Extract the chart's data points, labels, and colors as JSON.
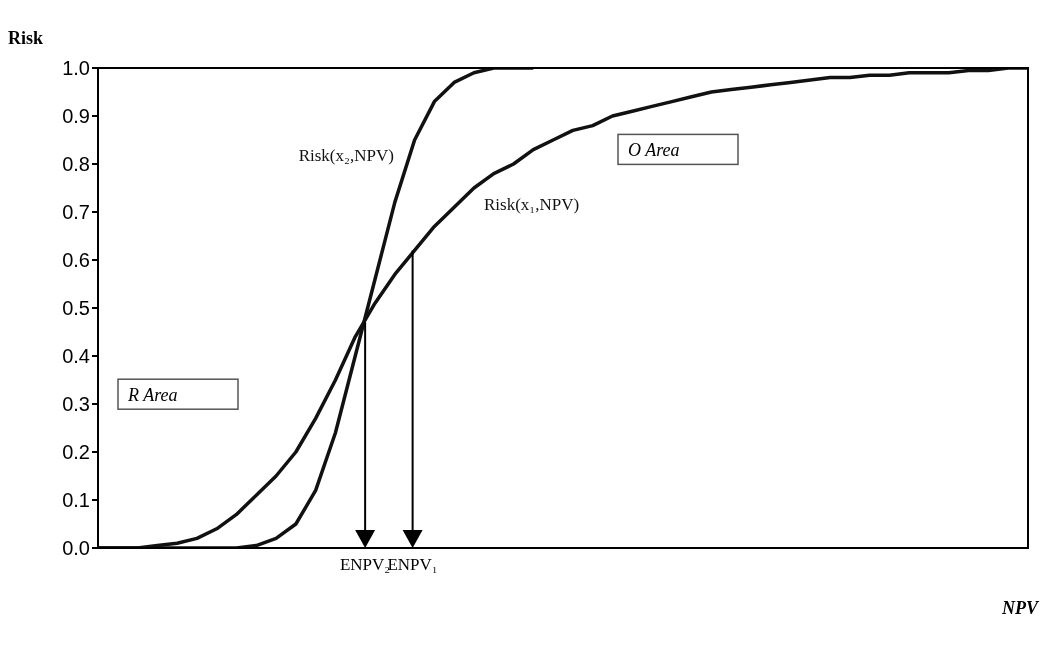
{
  "chart_data": {
    "type": "line",
    "xlabel": "NPV",
    "ylabel": "Risk",
    "categories": [
      null,
      null,
      null,
      null,
      null,
      null,
      null,
      null,
      null,
      null,
      null,
      null,
      null,
      null,
      null,
      null,
      null,
      null,
      null,
      null,
      null,
      null,
      null,
      null,
      null,
      null,
      null,
      null,
      null,
      null,
      null,
      null,
      null,
      null,
      null,
      null,
      null,
      null,
      null,
      null,
      null,
      null,
      null,
      null,
      null,
      null,
      null,
      null
    ],
    "series": [
      {
        "name": "Risk(x₁,NPV)",
        "color": "#111111",
        "values": [
          0,
          0,
          0,
          0.005,
          0.01,
          0.02,
          0.04,
          0.07,
          0.11,
          0.15,
          0.2,
          0.27,
          0.35,
          0.44,
          0.51,
          0.57,
          0.62,
          0.67,
          0.71,
          0.75,
          0.78,
          0.8,
          0.83,
          0.85,
          0.87,
          0.88,
          0.9,
          0.91,
          0.92,
          0.93,
          0.94,
          0.95,
          0.955,
          0.96,
          0.965,
          0.97,
          0.975,
          0.98,
          0.98,
          0.985,
          0.985,
          0.99,
          0.99,
          0.99,
          0.995,
          0.995,
          1,
          1
        ]
      },
      {
        "name": "Risk(x₂,NPV)",
        "color": "#111111",
        "values": [
          0,
          0,
          0,
          0,
          0,
          0,
          0,
          0,
          0.005,
          0.02,
          0.05,
          0.12,
          0.24,
          0.4,
          0.56,
          0.72,
          0.85,
          0.93,
          0.97,
          0.99,
          1,
          1,
          1,
          null,
          null,
          null,
          null,
          null,
          null,
          null,
          null,
          null,
          null,
          null,
          null,
          null,
          null,
          null,
          null,
          null,
          null,
          null,
          null,
          null,
          null,
          null,
          null,
          null
        ]
      }
    ],
    "ylim": [
      0,
      1
    ],
    "yticks": [
      {
        "value": 0,
        "label": "0.0"
      },
      {
        "value": 0.1,
        "label": "0.1"
      },
      {
        "value": 0.2,
        "label": "0.2"
      },
      {
        "value": 0.3,
        "label": "0.3"
      },
      {
        "value": 0.4,
        "label": "0.4"
      },
      {
        "value": 0.5,
        "label": "0.5"
      },
      {
        "value": 0.6,
        "label": "0.6"
      },
      {
        "value": 0.7,
        "label": "0.7"
      },
      {
        "value": 0.8,
        "label": "0.8"
      },
      {
        "value": 0.9,
        "label": "0.9"
      },
      {
        "value": 1,
        "label": "1.0"
      }
    ],
    "annotations": [
      "ENPV₂",
      "ENPV₁",
      "O Area",
      "R Area"
    ],
    "tick_labels": "y",
    "grid": false,
    "legend": false,
    "marker": "none",
    "line_style": "solid"
  }
}
